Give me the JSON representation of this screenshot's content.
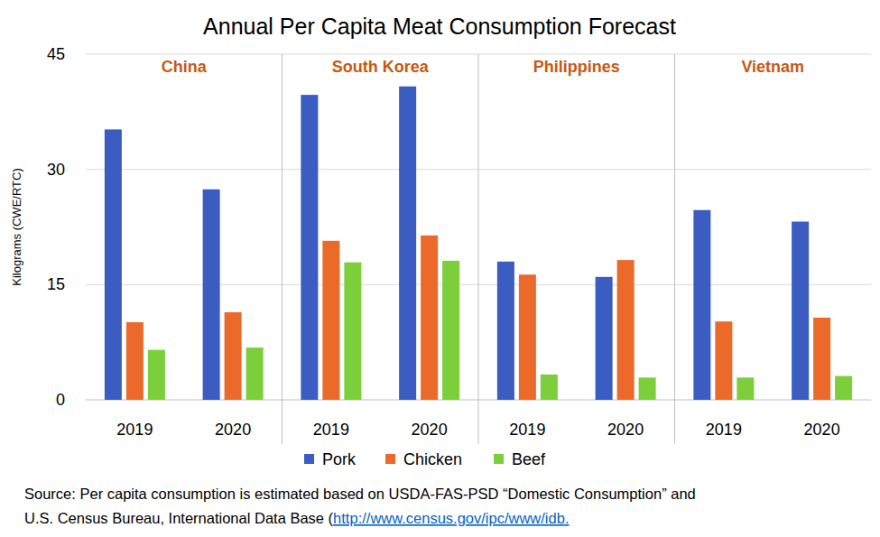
{
  "chart_data": {
    "type": "bar",
    "title": "Annual Per Capita Meat Consumption Forecast",
    "y_label": "Kilograms (CWE/RTC)",
    "groups": [
      "China",
      "South Korea",
      "Philippines",
      "Vietnam"
    ],
    "categories": [
      "2019",
      "2020",
      "2019",
      "2020",
      "2019",
      "2020",
      "2019",
      "2020"
    ],
    "series": [
      {
        "name": "Pork",
        "color": "#3b5cc0",
        "values": [
          35.2,
          27.4,
          39.7,
          40.8,
          18.0,
          16.0,
          24.7,
          23.2
        ]
      },
      {
        "name": "Chicken",
        "color": "#eb6a2a",
        "values": [
          10.1,
          11.4,
          20.7,
          21.4,
          16.3,
          18.2,
          10.2,
          10.7
        ]
      },
      {
        "name": "Beef",
        "color": "#7ccf3a",
        "values": [
          6.5,
          6.8,
          17.9,
          18.1,
          3.3,
          2.9,
          2.9,
          3.1
        ]
      }
    ],
    "ylim": [
      0,
      45
    ],
    "yticks": [
      0,
      15,
      30,
      45
    ],
    "grid": true,
    "legend": "bottom",
    "source": {
      "lines": [
        "Source: Per capita consumption is estimated based on USDA-FAS-PSD “Domestic Consumption” and",
        "U.S. Census Bureau, International Data Base ("
      ],
      "link": "http://www.census.gov/ipc/www/idb",
      "after_link": "."
    }
  }
}
